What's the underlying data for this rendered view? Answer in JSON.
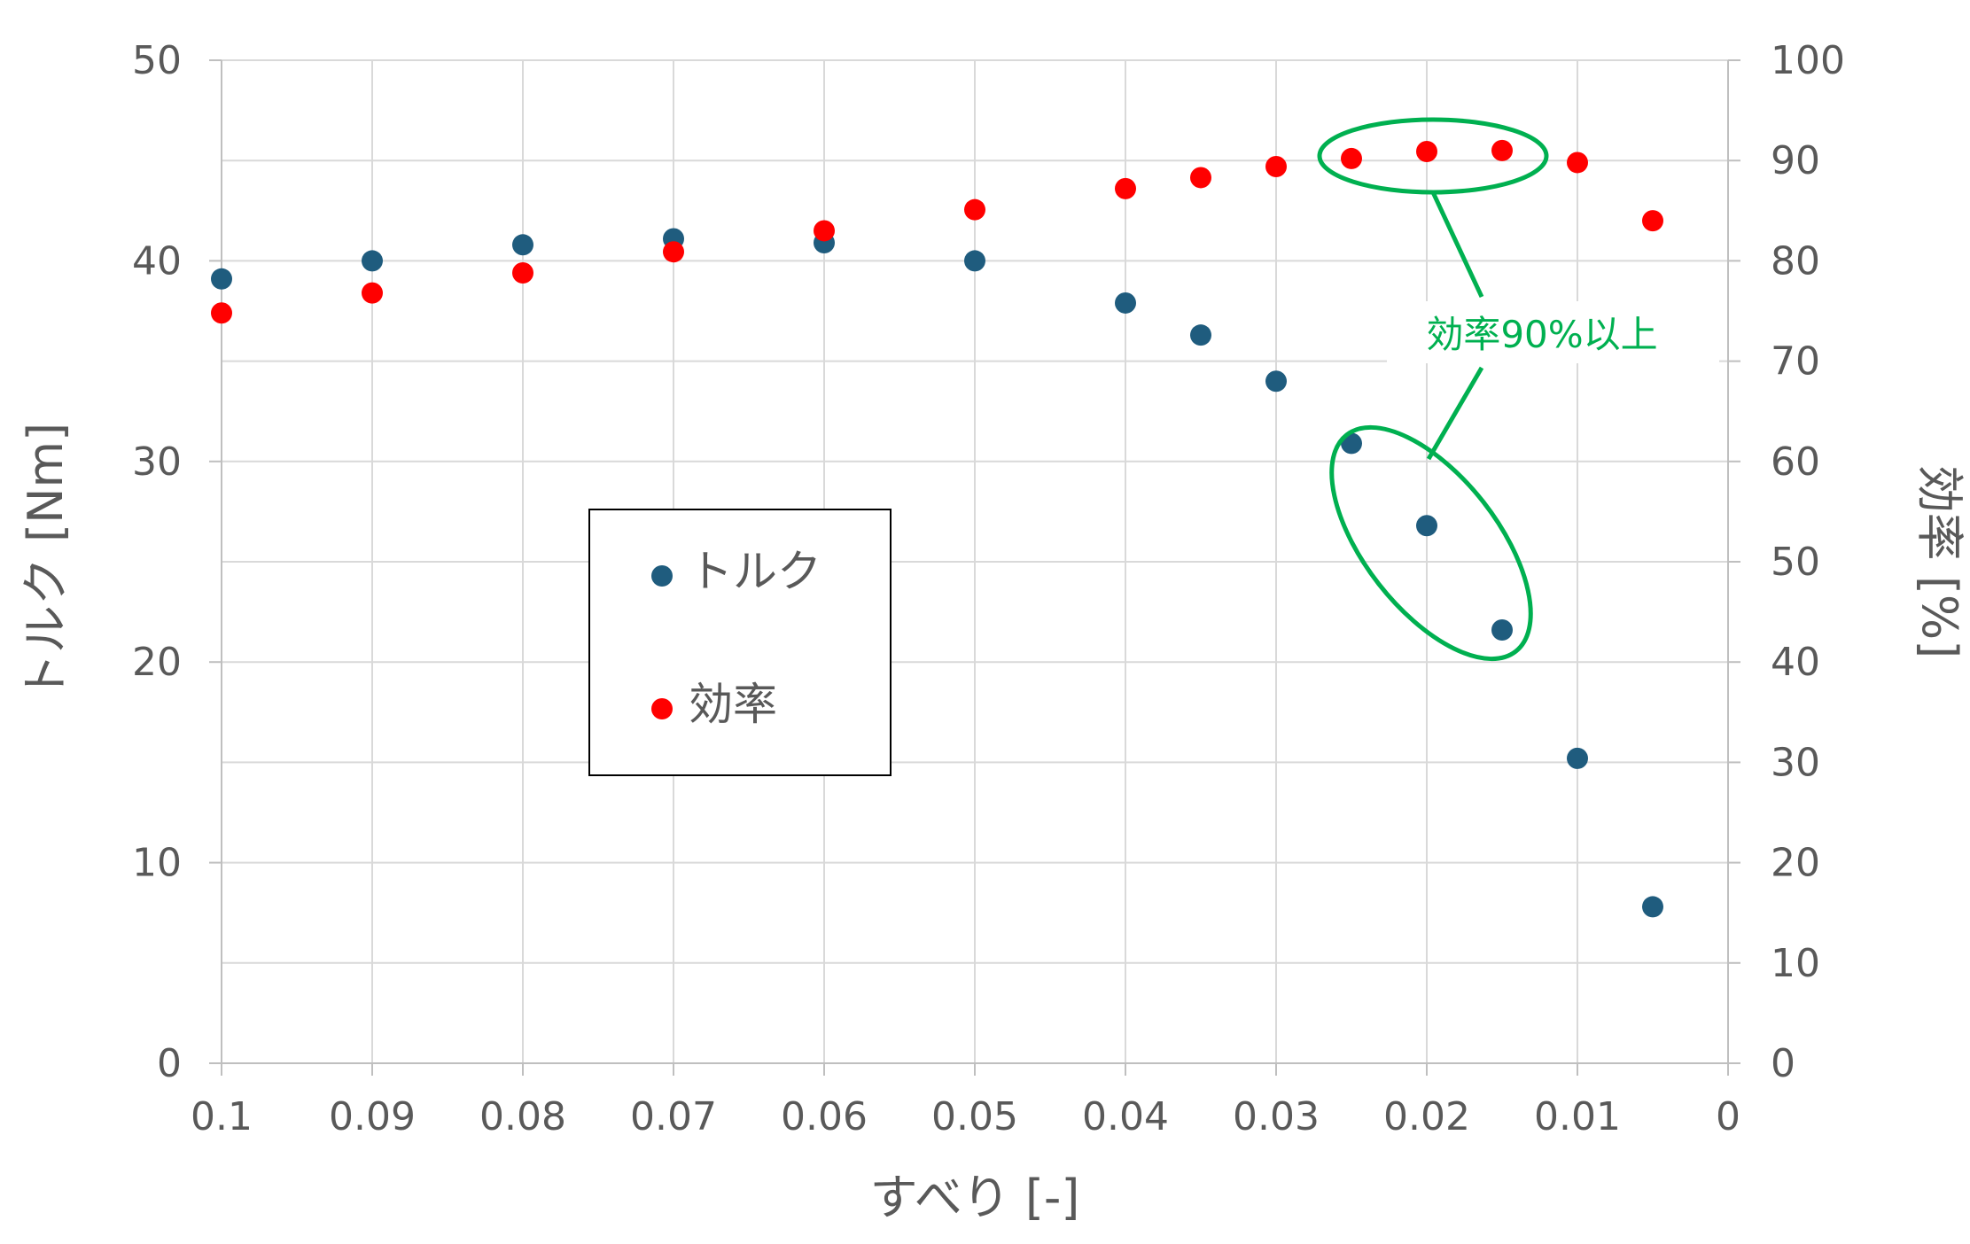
{
  "chart_data": {
    "type": "scatter",
    "xlabel": "すべり [-]",
    "ylabel": "トルク [Nm]",
    "y2label": "効率 [%]",
    "x_reversed": true,
    "xlim": [
      0,
      0.1
    ],
    "ylim": [
      0,
      50
    ],
    "y2lim": [
      0,
      100
    ],
    "x_ticks": [
      "0.1",
      "0.09",
      "0.08",
      "0.07",
      "0.06",
      "0.05",
      "0.04",
      "0.03",
      "0.02",
      "0.01",
      "0"
    ],
    "y_ticks": [
      "0",
      "10",
      "20",
      "30",
      "40",
      "50"
    ],
    "y2_ticks": [
      "0",
      "10",
      "20",
      "30",
      "40",
      "50",
      "60",
      "70",
      "80",
      "90",
      "100"
    ],
    "grid": true,
    "legend_position": "center-left",
    "series": [
      {
        "name": "トルク",
        "axis": "left",
        "color": "#1F5C7E",
        "x": [
          0.1,
          0.09,
          0.08,
          0.07,
          0.06,
          0.05,
          0.04,
          0.035,
          0.03,
          0.025,
          0.02,
          0.015,
          0.01,
          0.005
        ],
        "y": [
          39.1,
          40.0,
          40.8,
          41.1,
          40.9,
          40.0,
          37.9,
          36.3,
          34.0,
          30.9,
          26.8,
          21.6,
          15.2,
          7.8
        ]
      },
      {
        "name": "効率",
        "axis": "right",
        "color": "#FF0000",
        "x": [
          0.1,
          0.09,
          0.08,
          0.07,
          0.06,
          0.05,
          0.04,
          0.035,
          0.03,
          0.025,
          0.02,
          0.015,
          0.01,
          0.005
        ],
        "y": [
          74.8,
          76.8,
          78.8,
          80.9,
          83.0,
          85.1,
          87.2,
          88.3,
          89.4,
          90.2,
          90.9,
          91.0,
          89.8,
          84.0
        ]
      }
    ],
    "annotation": {
      "text": "効率90%以上",
      "color": "#00B050"
    }
  }
}
